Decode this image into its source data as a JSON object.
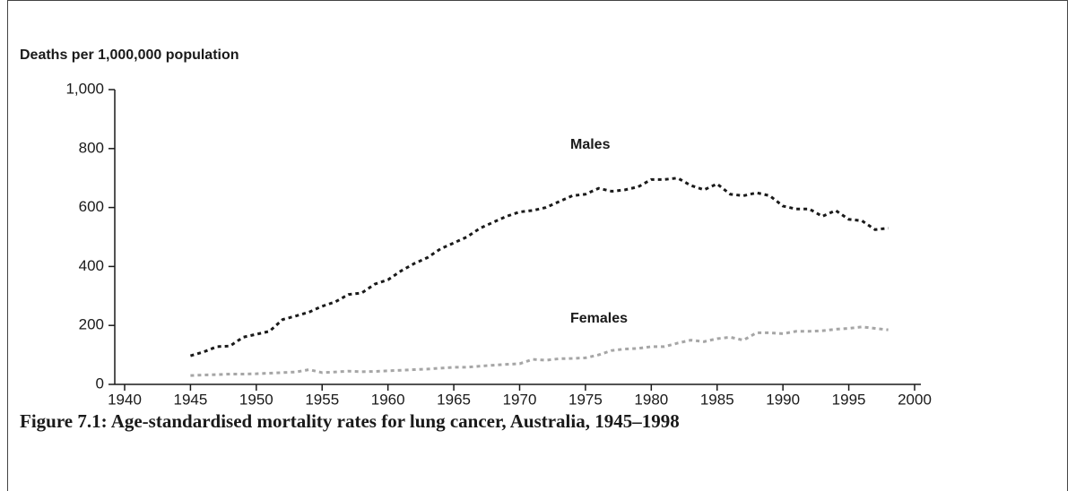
{
  "chart_data": {
    "type": "line",
    "title": "Figure 7.1: Age-standardised mortality rates for lung cancer, Australia, 1945–1998",
    "y_label": "Deaths per 1,000,000 population",
    "annotations": [
      "Males",
      "Females"
    ],
    "x": [
      1945,
      1946,
      1947,
      1948,
      1949,
      1950,
      1951,
      1952,
      1953,
      1954,
      1955,
      1956,
      1957,
      1958,
      1959,
      1960,
      1961,
      1962,
      1963,
      1964,
      1965,
      1966,
      1967,
      1968,
      1969,
      1970,
      1971,
      1972,
      1973,
      1974,
      1975,
      1976,
      1977,
      1978,
      1979,
      1980,
      1981,
      1982,
      1983,
      1984,
      1985,
      1986,
      1987,
      1988,
      1989,
      1990,
      1991,
      1992,
      1993,
      1994,
      1995,
      1996,
      1997,
      1998
    ],
    "series": [
      {
        "name": "Males",
        "color": "#1a1a1a",
        "values": [
          97,
          110,
          128,
          130,
          160,
          170,
          180,
          220,
          232,
          245,
          265,
          280,
          305,
          310,
          340,
          355,
          385,
          410,
          430,
          460,
          480,
          500,
          530,
          550,
          570,
          585,
          590,
          600,
          620,
          640,
          645,
          665,
          655,
          660,
          670,
          695,
          695,
          700,
          675,
          660,
          680,
          645,
          640,
          650,
          640,
          605,
          595,
          595,
          570,
          590,
          560,
          555,
          525,
          530
        ]
      },
      {
        "name": "Females",
        "color": "#a6a6a6",
        "values": [
          30,
          32,
          33,
          35,
          35,
          36,
          38,
          40,
          42,
          50,
          40,
          42,
          45,
          43,
          44,
          46,
          48,
          50,
          52,
          55,
          58,
          58,
          62,
          65,
          68,
          70,
          85,
          82,
          87,
          88,
          90,
          100,
          115,
          120,
          122,
          128,
          128,
          140,
          150,
          145,
          155,
          160,
          150,
          175,
          175,
          172,
          180,
          180,
          182,
          187,
          190,
          195,
          190,
          185
        ]
      }
    ],
    "xlim": [
      1940,
      2000
    ],
    "xticks": [
      1940,
      1945,
      1950,
      1955,
      1960,
      1965,
      1970,
      1975,
      1980,
      1985,
      1990,
      1995,
      2000
    ],
    "ylim": [
      0,
      1000
    ],
    "yticks": [
      0,
      200,
      400,
      600,
      800,
      {
        "value": 1000,
        "label": "1,000"
      }
    ],
    "grid": false,
    "dashed": true
  }
}
